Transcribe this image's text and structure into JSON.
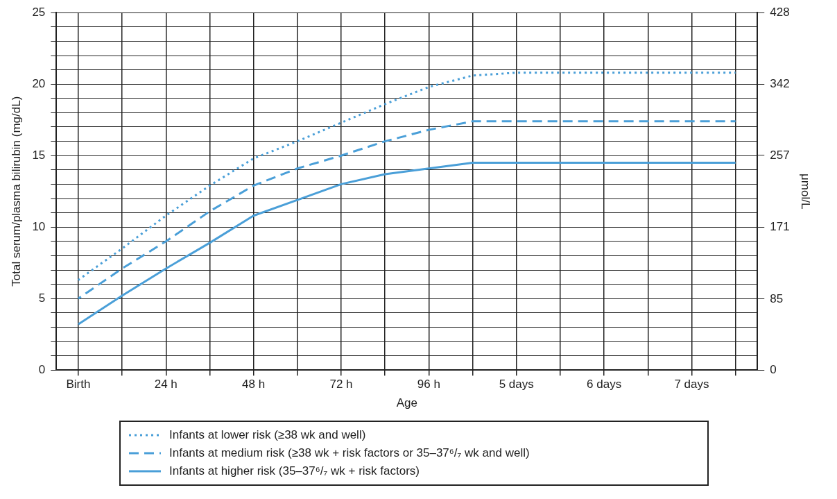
{
  "chart_data": {
    "type": "line",
    "xlabel": "Age",
    "ylabel": "Total serum/plasma bilirubin (mg/dL)",
    "y2label": "μmol/L",
    "categories": [
      "Birth",
      null,
      "24 h",
      null,
      "48 h",
      null,
      "72 h",
      null,
      "96 h",
      null,
      "5 days",
      null,
      "6 days",
      null,
      "7 days",
      null
    ],
    "series": [
      {
        "name": "Infants at lower risk (≥38 wk and well)",
        "color": "#4a9fd8",
        "line_style": "dotted",
        "values": [
          6.3,
          8.5,
          10.8,
          12.9,
          14.8,
          16.0,
          17.3,
          18.6,
          19.8,
          20.6,
          20.8,
          20.8,
          20.8,
          20.8,
          20.8,
          20.8
        ]
      },
      {
        "name": "Infants at medium risk (≥38 wk + risk factors or 35–37⁶/₇ wk and well)",
        "color": "#4a9fd8",
        "line_style": "dashed",
        "values": [
          5.0,
          7.1,
          9.0,
          11.1,
          12.9,
          14.1,
          15.0,
          16.0,
          16.8,
          17.4,
          17.4,
          17.4,
          17.4,
          17.4,
          17.4,
          17.4
        ]
      },
      {
        "name": "Infants at higher risk (35–37⁶/₇ wk + risk factors)",
        "color": "#4a9fd8",
        "line_style": "solid",
        "values": [
          3.2,
          5.2,
          7.1,
          8.9,
          10.8,
          11.9,
          13.0,
          13.7,
          14.1,
          14.5,
          14.5,
          14.5,
          14.5,
          14.5,
          14.5,
          14.5
        ]
      }
    ],
    "ylim": [
      0,
      25
    ],
    "yticks": [
      0,
      {
        "value": 1,
        "label": null
      },
      {
        "value": 2,
        "label": null
      },
      {
        "value": 3,
        "label": null
      },
      {
        "value": 4,
        "label": null
      },
      5,
      {
        "value": 6,
        "label": null
      },
      {
        "value": 7,
        "label": null
      },
      {
        "value": 8,
        "label": null
      },
      {
        "value": 9,
        "label": null
      },
      10,
      {
        "value": 11,
        "label": null
      },
      {
        "value": 12,
        "label": null
      },
      {
        "value": 13,
        "label": null
      },
      {
        "value": 14,
        "label": null
      },
      15,
      {
        "value": 16,
        "label": null
      },
      {
        "value": 17,
        "label": null
      },
      {
        "value": 18,
        "label": null
      },
      {
        "value": 19,
        "label": null
      },
      20,
      {
        "value": 21,
        "label": null
      },
      {
        "value": 22,
        "label": null
      },
      {
        "value": 23,
        "label": null
      },
      {
        "value": 24,
        "label": null
      },
      25
    ],
    "y2lim": [
      0,
      428
    ],
    "y2ticks": [
      0,
      85,
      171,
      257,
      342,
      428
    ],
    "grid": true,
    "legend": "bottom",
    "marker": "none"
  }
}
